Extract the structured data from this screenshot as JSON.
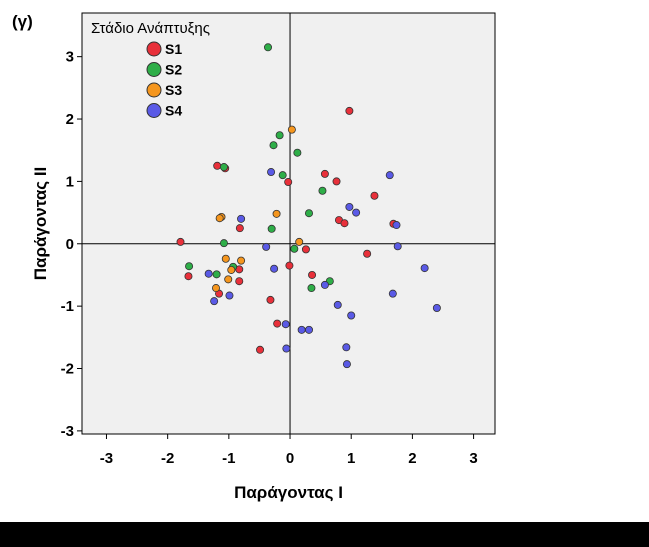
{
  "panel_label": "(γ)",
  "colors": {
    "plot_bg": "#f0f0f0",
    "S1": "#e8303a",
    "S2": "#2eae48",
    "S3": "#f5961e",
    "S4": "#5a5ae6",
    "bottom_bar": "#000000"
  },
  "chart_data": {
    "type": "scatter",
    "title": "",
    "xlabel": "Παράγοντας Ι",
    "ylabel": "Παράγοντας ΙΙ",
    "xlim": [
      -3.4,
      3.35
    ],
    "ylim": [
      -3.05,
      3.7
    ],
    "xticks": [
      -3,
      -2,
      -1,
      0,
      1,
      2,
      3
    ],
    "yticks": [
      -3,
      -2,
      -1,
      0,
      1,
      2,
      3
    ],
    "reference_lines": {
      "x": 0,
      "y": 0
    },
    "legend": {
      "title": "Στάδιο Ανάπτυξης",
      "position": "top-left"
    },
    "series": [
      {
        "name": "S1",
        "color": "#e8303a",
        "points": [
          [
            0.97,
            2.13
          ],
          [
            -1.19,
            1.25
          ],
          [
            -1.06,
            1.21
          ],
          [
            0.57,
            1.12
          ],
          [
            0.76,
            1.0
          ],
          [
            -0.03,
            0.99
          ],
          [
            1.38,
            0.77
          ],
          [
            0.8,
            0.38
          ],
          [
            0.89,
            0.33
          ],
          [
            1.69,
            0.32
          ],
          [
            -0.82,
            0.25
          ],
          [
            -1.79,
            0.03
          ],
          [
            0.26,
            -0.09
          ],
          [
            1.26,
            -0.16
          ],
          [
            -0.01,
            -0.35
          ],
          [
            0.36,
            -0.5
          ],
          [
            -1.66,
            -0.52
          ],
          [
            -0.83,
            -0.41
          ],
          [
            -0.83,
            -0.6
          ],
          [
            -1.16,
            -0.8
          ],
          [
            -0.32,
            -0.9
          ],
          [
            -0.21,
            -1.28
          ],
          [
            -0.49,
            -1.7
          ]
        ]
      },
      {
        "name": "S2",
        "color": "#2eae48",
        "points": [
          [
            -0.36,
            3.15
          ],
          [
            -0.17,
            1.74
          ],
          [
            -0.27,
            1.58
          ],
          [
            0.12,
            1.46
          ],
          [
            -1.08,
            1.23
          ],
          [
            -0.12,
            1.1
          ],
          [
            0.53,
            0.85
          ],
          [
            0.31,
            0.49
          ],
          [
            -0.3,
            0.24
          ],
          [
            -1.08,
            0.01
          ],
          [
            0.07,
            -0.08
          ],
          [
            -1.65,
            -0.36
          ],
          [
            -0.93,
            -0.37
          ],
          [
            -1.2,
            -0.49
          ],
          [
            0.65,
            -0.6
          ],
          [
            0.35,
            -0.71
          ]
        ]
      },
      {
        "name": "S3",
        "color": "#f5961e",
        "points": [
          [
            0.03,
            1.83
          ],
          [
            -1.12,
            0.43
          ],
          [
            -1.15,
            0.41
          ],
          [
            -0.22,
            0.48
          ],
          [
            0.15,
            0.03
          ],
          [
            -1.05,
            -0.24
          ],
          [
            -0.8,
            -0.27
          ],
          [
            -0.96,
            -0.42
          ],
          [
            -1.01,
            -0.57
          ],
          [
            -1.21,
            -0.71
          ]
        ]
      },
      {
        "name": "S4",
        "color": "#5a5ae6",
        "points": [
          [
            1.63,
            1.1
          ],
          [
            -0.31,
            1.15
          ],
          [
            0.97,
            0.59
          ],
          [
            1.08,
            0.5
          ],
          [
            -0.8,
            0.4
          ],
          [
            1.74,
            0.3
          ],
          [
            -0.39,
            -0.05
          ],
          [
            1.76,
            -0.04
          ],
          [
            -0.26,
            -0.4
          ],
          [
            2.2,
            -0.39
          ],
          [
            -1.33,
            -0.48
          ],
          [
            0.57,
            -0.66
          ],
          [
            1.68,
            -0.8
          ],
          [
            -0.99,
            -0.83
          ],
          [
            -1.24,
            -0.92
          ],
          [
            0.78,
            -0.98
          ],
          [
            2.4,
            -1.03
          ],
          [
            1.0,
            -1.15
          ],
          [
            -0.07,
            -1.29
          ],
          [
            0.19,
            -1.38
          ],
          [
            0.31,
            -1.38
          ],
          [
            0.92,
            -1.66
          ],
          [
            -0.06,
            -1.68
          ],
          [
            0.93,
            -1.93
          ]
        ]
      }
    ]
  }
}
